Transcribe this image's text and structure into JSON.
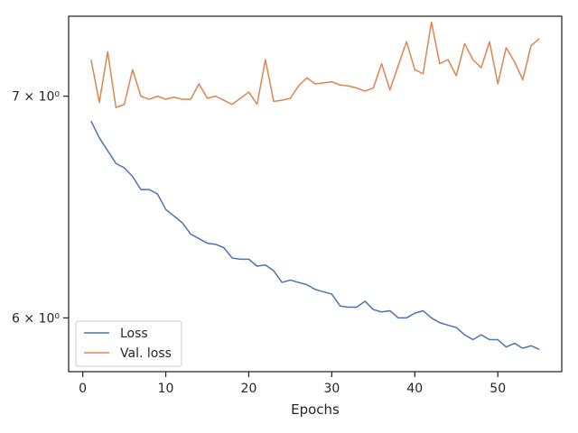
{
  "chart_data": {
    "type": "line",
    "title": "",
    "xlabel": "Epochs",
    "ylabel": "",
    "xlim": [
      -1.7,
      57.7
    ],
    "ylim": [
      5.78,
      7.4
    ],
    "yscale": "log",
    "grid": false,
    "legend_position": "lower-left",
    "x_ticks": [
      0,
      10,
      20,
      30,
      40,
      50
    ],
    "y_ticks": [
      {
        "value": 6,
        "label": "6 × 10⁰"
      },
      {
        "value": 7,
        "label": "7 × 10⁰"
      }
    ],
    "x": [
      1,
      2,
      3,
      4,
      5,
      6,
      7,
      8,
      9,
      10,
      11,
      12,
      13,
      14,
      15,
      16,
      17,
      18,
      19,
      20,
      21,
      22,
      23,
      24,
      25,
      26,
      27,
      28,
      29,
      30,
      31,
      32,
      33,
      34,
      35,
      36,
      37,
      38,
      39,
      40,
      41,
      42,
      43,
      44,
      45,
      46,
      47,
      48,
      49,
      50,
      51,
      52,
      53,
      54,
      55
    ],
    "series": [
      {
        "name": "Loss",
        "color": "#4c72b0",
        "values": [
          6.88,
          6.8,
          6.74,
          6.68,
          6.66,
          6.62,
          6.56,
          6.56,
          6.54,
          6.47,
          6.44,
          6.41,
          6.36,
          6.34,
          6.32,
          6.315,
          6.3,
          6.255,
          6.25,
          6.25,
          6.22,
          6.225,
          6.2,
          6.15,
          6.16,
          6.15,
          6.14,
          6.12,
          6.11,
          6.1,
          6.05,
          6.045,
          6.045,
          6.07,
          6.035,
          6.025,
          6.03,
          6.0,
          6.0,
          6.02,
          6.03,
          6.0,
          5.98,
          5.97,
          5.96,
          5.93,
          5.91,
          5.93,
          5.91,
          5.91,
          5.88,
          5.895,
          5.875,
          5.885,
          5.87
        ]
      },
      {
        "name": "Val. loss",
        "color": "#dd8452",
        "values": [
          7.18,
          6.97,
          7.22,
          6.945,
          6.96,
          7.13,
          7.0,
          6.985,
          7.0,
          6.985,
          6.995,
          6.985,
          6.985,
          7.06,
          6.99,
          7.0,
          6.98,
          6.96,
          6.99,
          7.02,
          6.96,
          7.18,
          6.975,
          6.98,
          6.99,
          7.05,
          7.09,
          7.06,
          7.065,
          7.07,
          7.055,
          7.05,
          7.04,
          7.025,
          7.04,
          7.16,
          7.03,
          7.15,
          7.27,
          7.13,
          7.11,
          7.37,
          7.16,
          7.18,
          7.1,
          7.26,
          7.18,
          7.14,
          7.27,
          7.06,
          7.24,
          7.17,
          7.08,
          7.25,
          7.285
        ]
      }
    ]
  }
}
